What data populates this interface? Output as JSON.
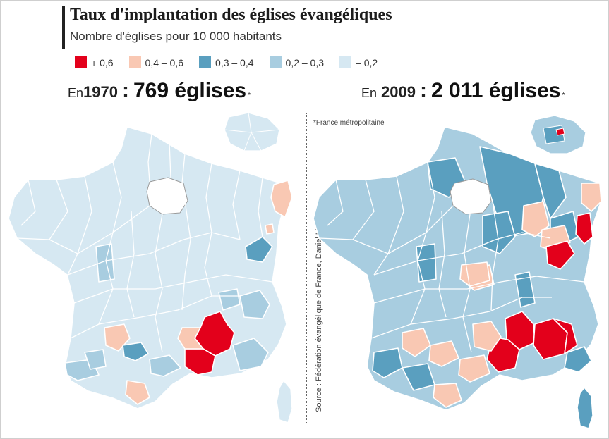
{
  "title": "Taux d'implantation des églises évangéliques",
  "subtitle": "Nombre d'églises pour 10 000 habitants",
  "legend": [
    {
      "label": "+ 0,6",
      "color": "#e3001b"
    },
    {
      "label": "0,4 – 0,6",
      "color": "#f9c8b3"
    },
    {
      "label": "0,3 – 0,4",
      "color": "#5a9fbf"
    },
    {
      "label": "0,2 – 0,3",
      "color": "#a8cde0"
    },
    {
      "label": "– 0,2",
      "color": "#d6e8f2"
    }
  ],
  "left_map": {
    "prefix": "En",
    "year": "1970",
    "separator": ":",
    "count": "769 églises",
    "star": "*"
  },
  "right_map": {
    "prefix": "En",
    "year": "2009",
    "separator": ":",
    "count": "2 011 églises",
    "star": "*"
  },
  "footnote": "*France métropolitaine",
  "source": "Source : Fédération évangélique de France, Daniel Liechti",
  "colors": {
    "border": "#ffffff",
    "paris_hole": "#ffffff"
  }
}
